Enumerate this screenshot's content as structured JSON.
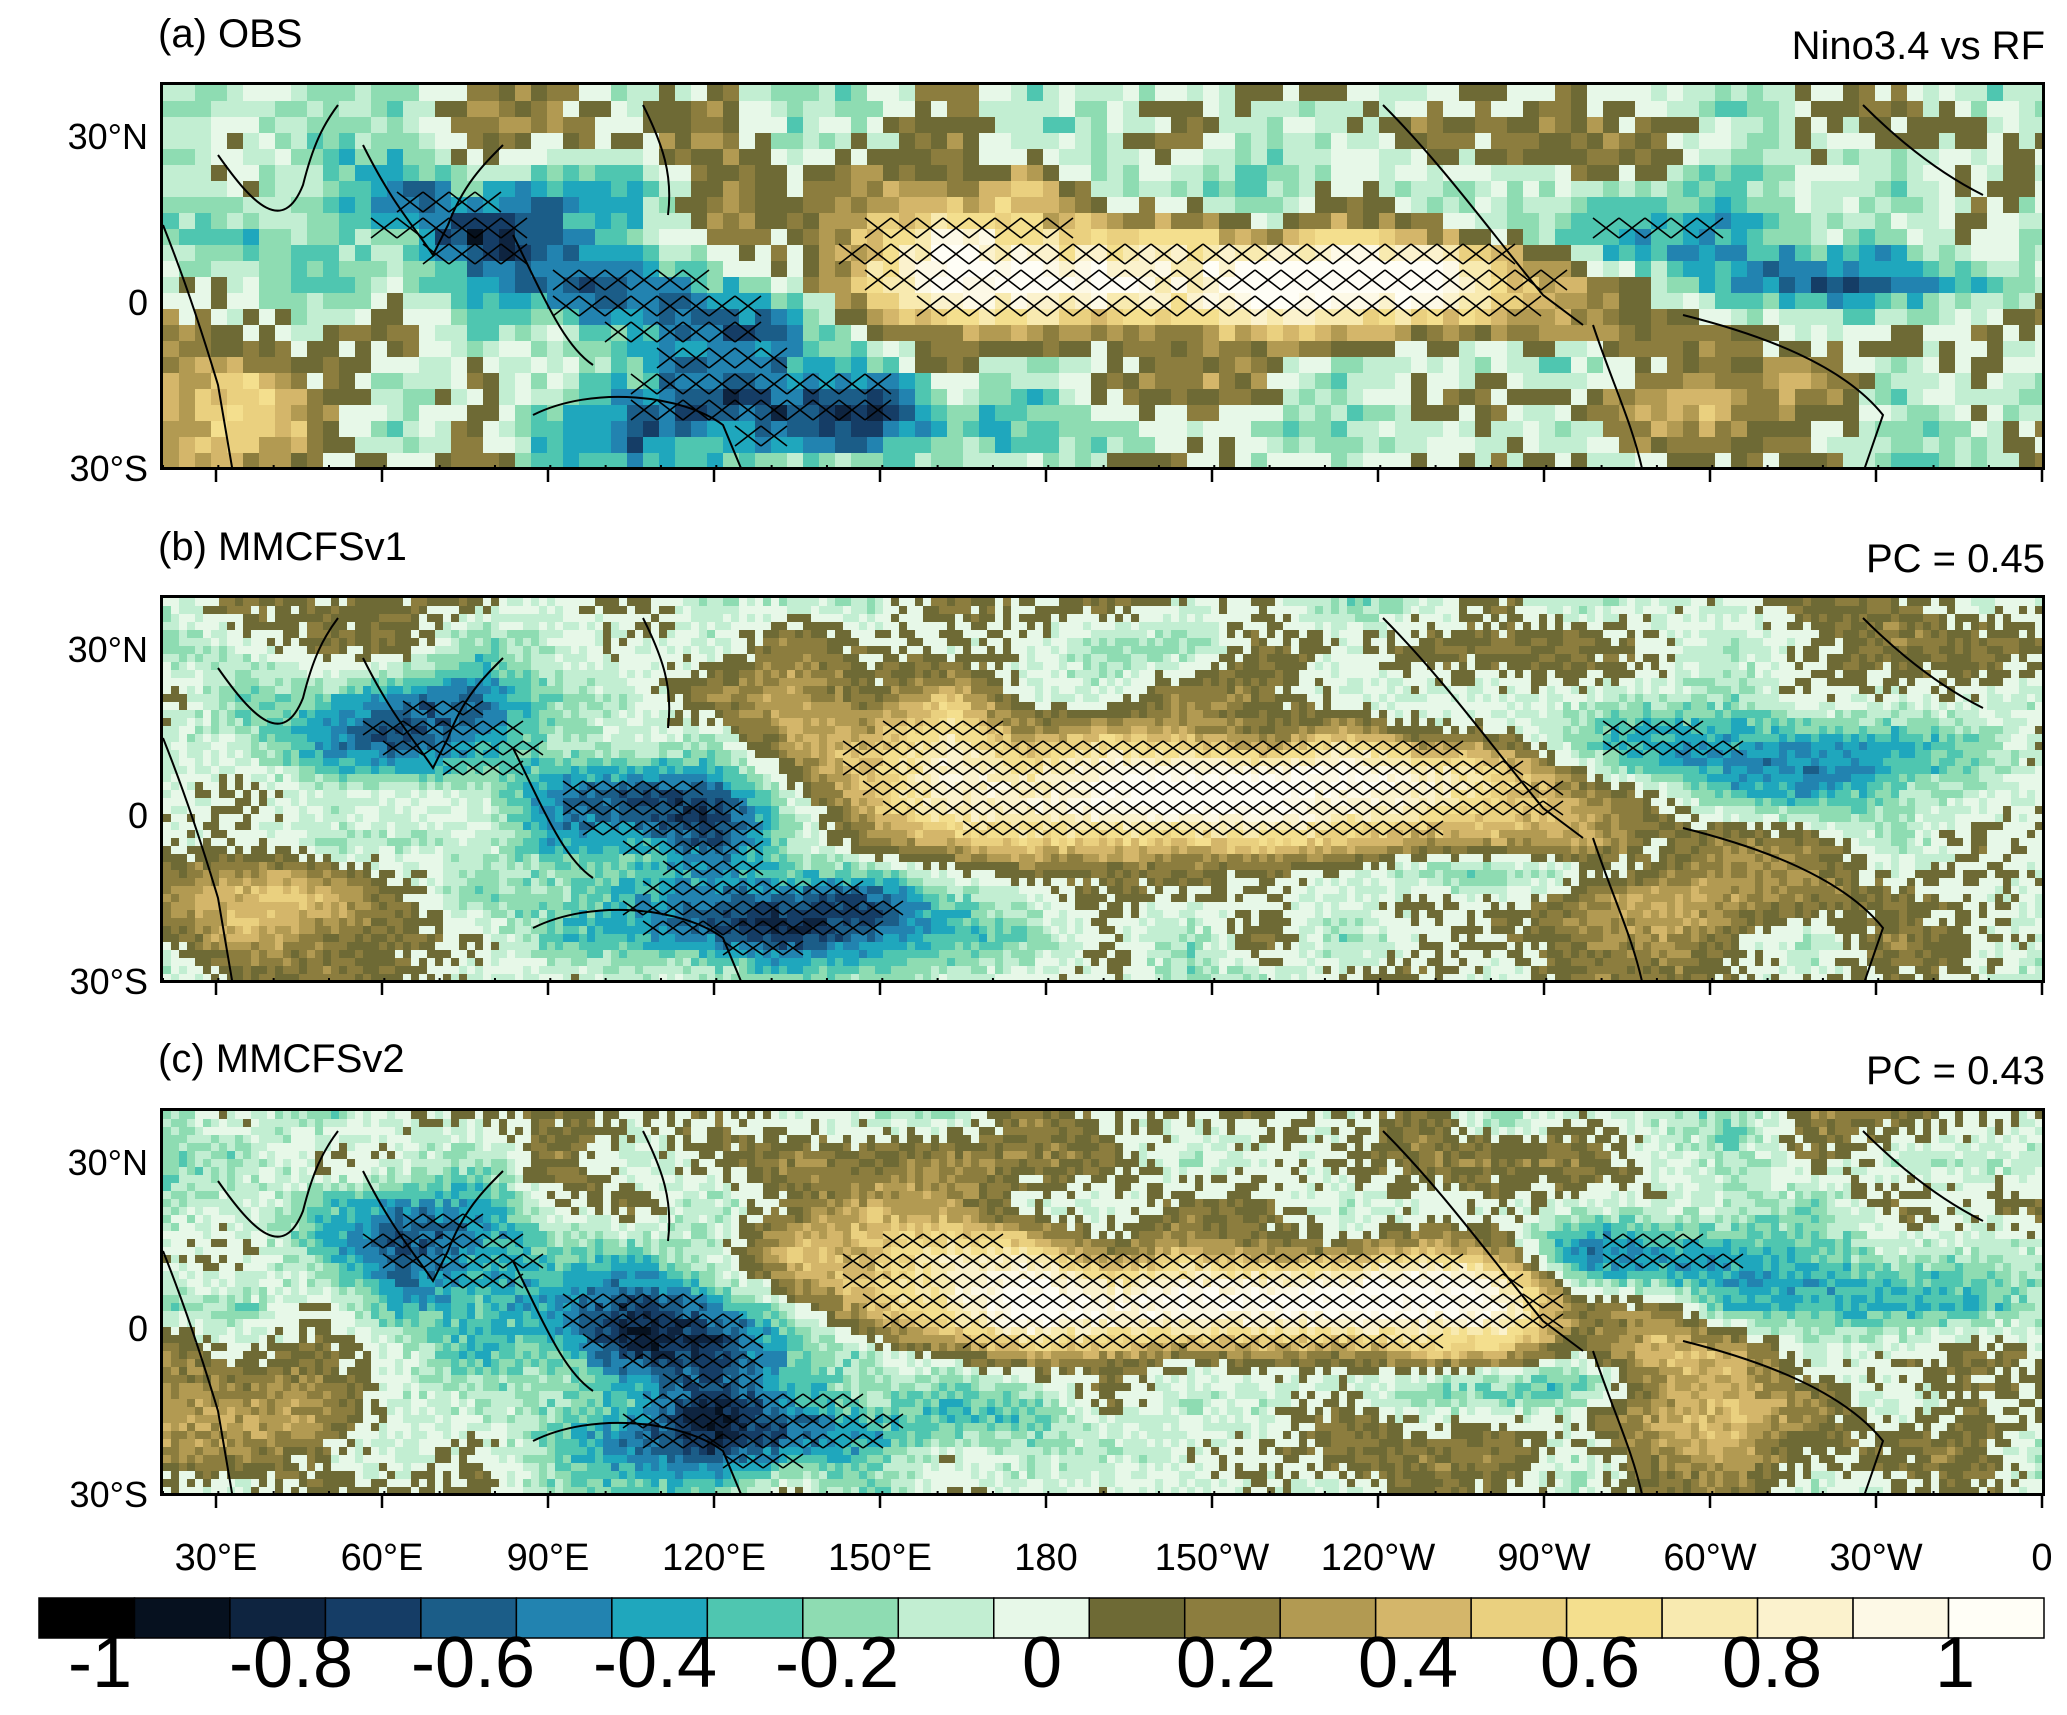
{
  "panels": [
    {
      "id": "a",
      "title": "(a) OBS",
      "note": "Nino3.4 vs RF",
      "seed": 11,
      "smooth": 2,
      "noise": 0.3
    },
    {
      "id": "b",
      "title": "(b) MMCFSv1",
      "note": "PC = 0.45",
      "seed": 29,
      "smooth": 1,
      "noise": 0.22
    },
    {
      "id": "c",
      "title": "(c) MMCFSv2",
      "note": "PC = 0.43",
      "seed": 47,
      "smooth": 1,
      "noise": 0.24
    }
  ],
  "y_axis": {
    "labels": [
      "30°N",
      "0",
      "30°S"
    ]
  },
  "x_axis": {
    "labels": [
      "30°E",
      "60°E",
      "90°E",
      "120°E",
      "150°E",
      "180",
      "150°W",
      "120°W",
      "90°W",
      "60°W",
      "30°W",
      "0"
    ]
  },
  "colorbar": {
    "tick_labels": [
      "-1",
      "-0.8",
      "-0.6",
      "-0.4",
      "-0.2",
      "0",
      "0.2",
      "0.4",
      "0.6",
      "0.8",
      "1"
    ],
    "colors": [
      "#000000",
      "#06111f",
      "#0e2440",
      "#153d66",
      "#1b5d88",
      "#2283b0",
      "#1fa7bd",
      "#4fc6b0",
      "#8edcb2",
      "#c2eed2",
      "#e7f8e8",
      "#6e6a35",
      "#8c7d3e",
      "#b29a52",
      "#d4b66a",
      "#ead07f",
      "#f4df8e",
      "#f8eab0",
      "#fbf2cd",
      "#fdf9e6",
      "#fffef6"
    ]
  }
}
